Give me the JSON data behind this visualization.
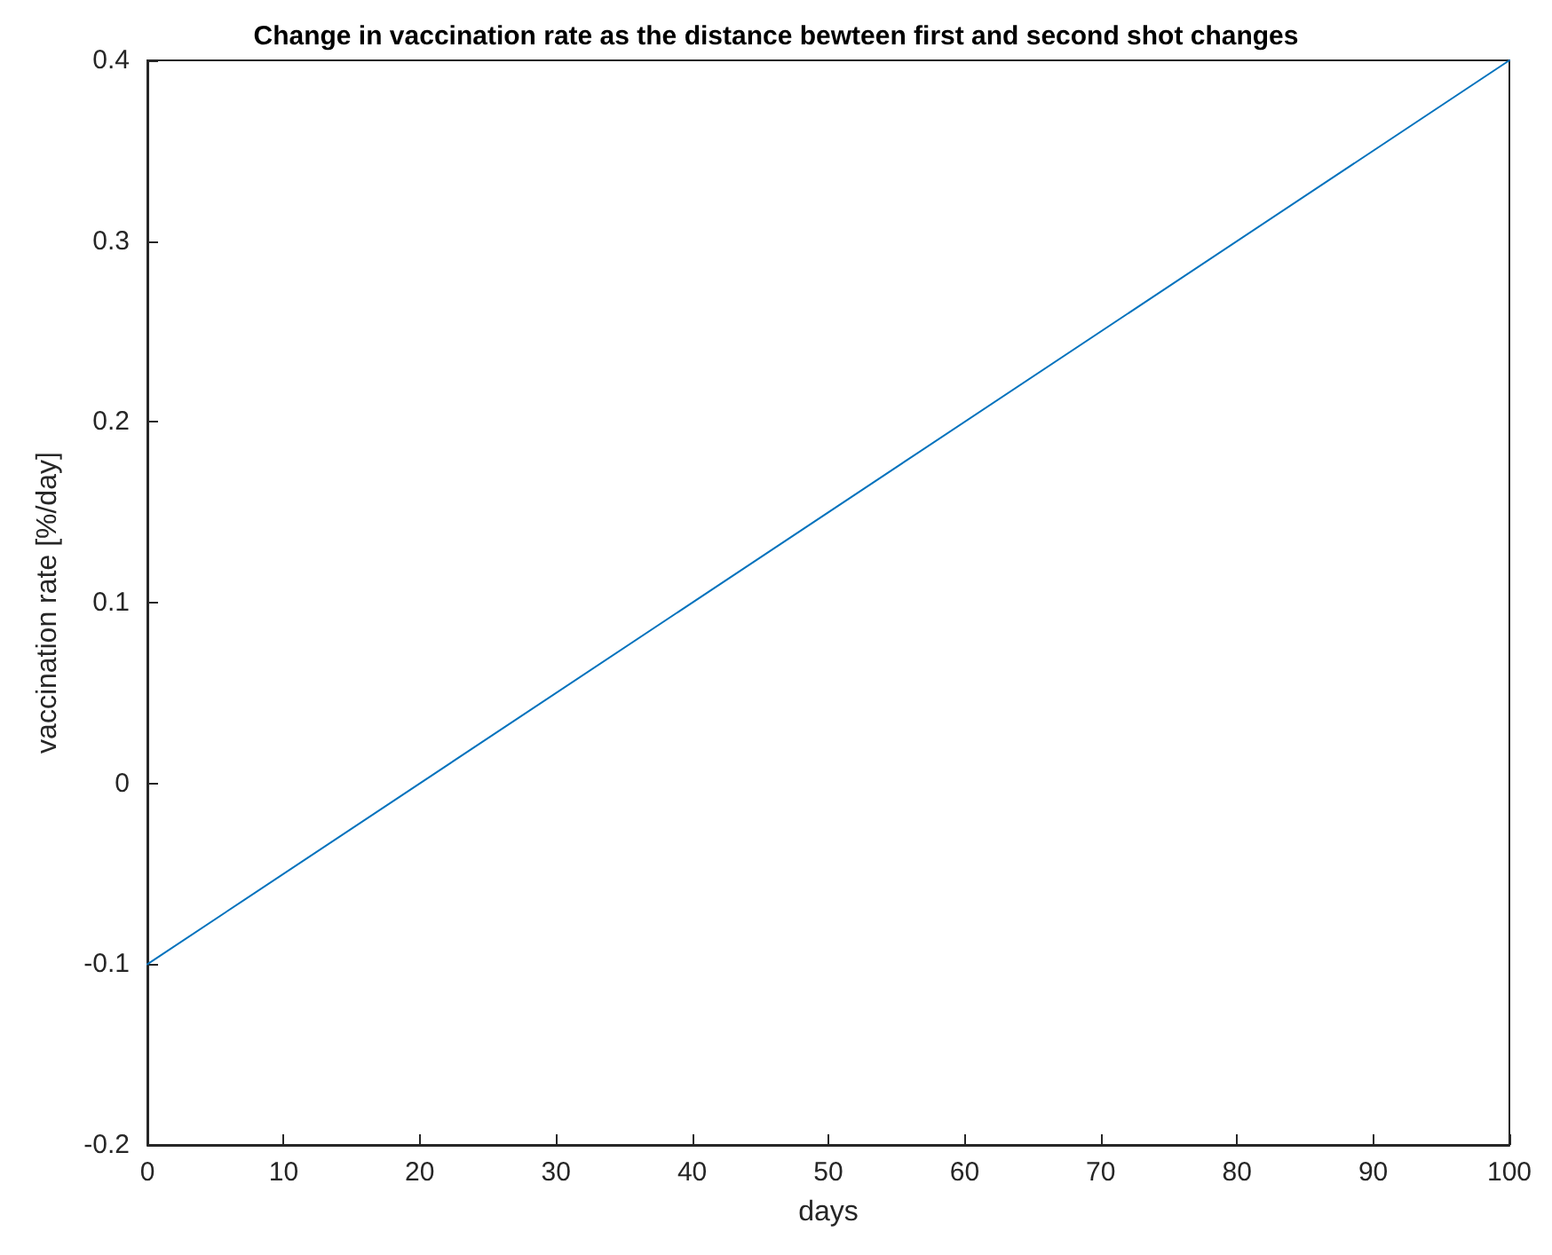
{
  "chart_data": {
    "type": "line",
    "title": "Change in vaccination rate as the distance bewteen first and second shot changes",
    "xlabel": "days",
    "ylabel": "vaccination rate [%/day]",
    "x": [
      0,
      100
    ],
    "series": [
      {
        "color": "#0072bd",
        "values": [
          -0.1,
          0.4
        ]
      }
    ],
    "xlim": [
      0,
      100
    ],
    "xticks": [
      0,
      10,
      20,
      30,
      40,
      50,
      60,
      70,
      80,
      90,
      100
    ],
    "ylim": [
      -0.2,
      0.4
    ],
    "yticks": [
      -0.2,
      -0.1,
      0,
      0.1,
      0.2,
      0.3,
      0.4
    ],
    "grid": false,
    "marker": "none",
    "line_style": "solid"
  }
}
